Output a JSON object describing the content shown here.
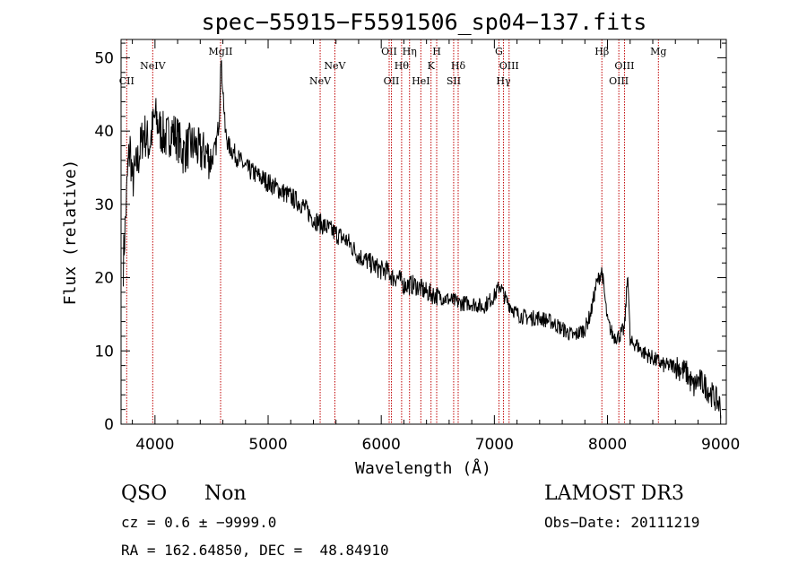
{
  "chart_data": {
    "type": "line",
    "title": "spec−55915−F5591506_sp04−137.fits",
    "xlabel": "Wavelength (Å)",
    "ylabel": "Flux (relative)",
    "xlim": [
      3700,
      9050
    ],
    "ylim": [
      0,
      52.5
    ],
    "xticks": [
      4000,
      5000,
      6000,
      7000,
      8000,
      9000
    ],
    "yticks": [
      0,
      10,
      20,
      30,
      40,
      50
    ],
    "series": [
      {
        "name": "flux",
        "x": [
          3720,
          3740,
          3760,
          3780,
          3800,
          3850,
          3900,
          3950,
          4000,
          4050,
          4100,
          4150,
          4200,
          4250,
          4300,
          4350,
          4400,
          4450,
          4500,
          4540,
          4570,
          4580,
          4600,
          4620,
          4650,
          4700,
          4750,
          4800,
          4900,
          5000,
          5100,
          5200,
          5300,
          5400,
          5500,
          5600,
          5700,
          5800,
          5900,
          6000,
          6050,
          6100,
          6150,
          6200,
          6300,
          6400,
          6500,
          6600,
          6700,
          6800,
          6900,
          7000,
          7050,
          7100,
          7200,
          7300,
          7400,
          7500,
          7600,
          7700,
          7800,
          7850,
          7900,
          7950,
          8000,
          8050,
          8100,
          8150,
          8180,
          8200,
          8250,
          8300,
          8400,
          8500,
          8600,
          8700,
          8760,
          8800,
          8850,
          8900,
          8950,
          9000
        ],
        "y": [
          22,
          28,
          35,
          38,
          33,
          36,
          40,
          38,
          42,
          40,
          39,
          40,
          39,
          37,
          38,
          38,
          37,
          37,
          36,
          38,
          42,
          50,
          46,
          40,
          38,
          37,
          36,
          35,
          34,
          33,
          32,
          31,
          30,
          28,
          27,
          26,
          25,
          23,
          22,
          21,
          21,
          20,
          20,
          19,
          19,
          18,
          17.5,
          17,
          16.5,
          16.5,
          16,
          17.5,
          19,
          17,
          15,
          14.5,
          14.5,
          14,
          13,
          12,
          13,
          15,
          19,
          21,
          14,
          12,
          12,
          13,
          21,
          11,
          11,
          10,
          9,
          8,
          8,
          7,
          5,
          6,
          5.5,
          4.5,
          3.5,
          2.5
        ]
      }
    ],
    "lines": [
      {
        "name": "CII",
        "x": 3750,
        "row": 2
      },
      {
        "name": "NeIV",
        "x": 3980,
        "row": 1
      },
      {
        "name": "MgII",
        "x": 4580,
        "row": 0
      },
      {
        "name": "NeV",
        "x": 5460,
        "row": 2
      },
      {
        "name": "NeV",
        "x": 5590,
        "row": 1
      },
      {
        "name": "OII",
        "x": 6070,
        "row": 0
      },
      {
        "name": "OII",
        "x": 6090,
        "row": 2
      },
      {
        "name": "Hθ",
        "x": 6180,
        "row": 1
      },
      {
        "name": "Hη",
        "x": 6250,
        "row": 0
      },
      {
        "name": "HeI",
        "x": 6350,
        "row": 2
      },
      {
        "name": "K",
        "x": 6440,
        "row": 1
      },
      {
        "name": "H",
        "x": 6490,
        "row": 0
      },
      {
        "name": "SII",
        "x": 6640,
        "row": 2
      },
      {
        "name": "Hδ",
        "x": 6680,
        "row": 1
      },
      {
        "name": "G",
        "x": 7040,
        "row": 0
      },
      {
        "name": "Hγ",
        "x": 7080,
        "row": 2
      },
      {
        "name": "OIII",
        "x": 7130,
        "row": 1
      },
      {
        "name": "Hβ",
        "x": 7950,
        "row": 0
      },
      {
        "name": "OIII",
        "x": 8100,
        "row": 2
      },
      {
        "name": "OIII",
        "x": 8150,
        "row": 1
      },
      {
        "name": "Mg",
        "x": 8450,
        "row": 0
      }
    ],
    "line_color": "#c00000"
  },
  "info": {
    "class": "QSO",
    "subclass": "Non",
    "survey": "LAMOST DR3",
    "cz": "cz = 0.6 ± −9999.0",
    "obsdate": "Obs−Date: 20111219",
    "radec": "RA = 162.64850, DEC =  48.84910"
  }
}
